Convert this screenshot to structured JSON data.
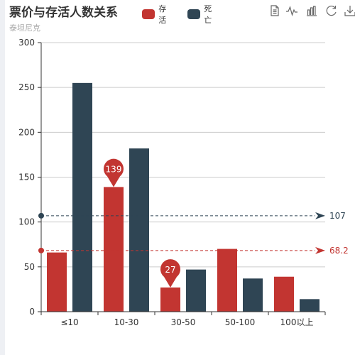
{
  "title": "票价与存活人数关系",
  "subtitle": "泰坦尼克",
  "toolbox": [
    {
      "name": "data-view-icon"
    },
    {
      "name": "line-chart-icon"
    },
    {
      "name": "bar-chart-icon"
    },
    {
      "name": "restore-icon"
    },
    {
      "name": "save-image-icon"
    }
  ],
  "colors": {
    "survived": "#c23531",
    "died": "#2f4554",
    "axis": "#333333",
    "grid": "#cccccc",
    "tick_label": "#333333"
  },
  "chart_data": {
    "type": "bar",
    "categories": [
      "≤10",
      "10-30",
      "30-50",
      "50-100",
      "100以上"
    ],
    "series": [
      {
        "name": "存活",
        "values": [
          66,
          139,
          27,
          70,
          39
        ]
      },
      {
        "name": "死亡",
        "values": [
          255,
          182,
          47,
          37,
          14
        ]
      }
    ],
    "ylim": [
      0,
      300
    ],
    "yticks": [
      0,
      50,
      100,
      150,
      200,
      250,
      300
    ],
    "grid": true,
    "legend_position": "top-center",
    "mark_points": [
      {
        "series": 0,
        "category": "10-30",
        "value": 139,
        "label": "139"
      },
      {
        "series": 0,
        "category": "30-50",
        "value": 27,
        "label": "27"
      }
    ],
    "mark_lines": [
      {
        "series": 1,
        "value": 107,
        "label": "107"
      },
      {
        "series": 0,
        "value": 68.2,
        "label": "68.2"
      }
    ]
  }
}
